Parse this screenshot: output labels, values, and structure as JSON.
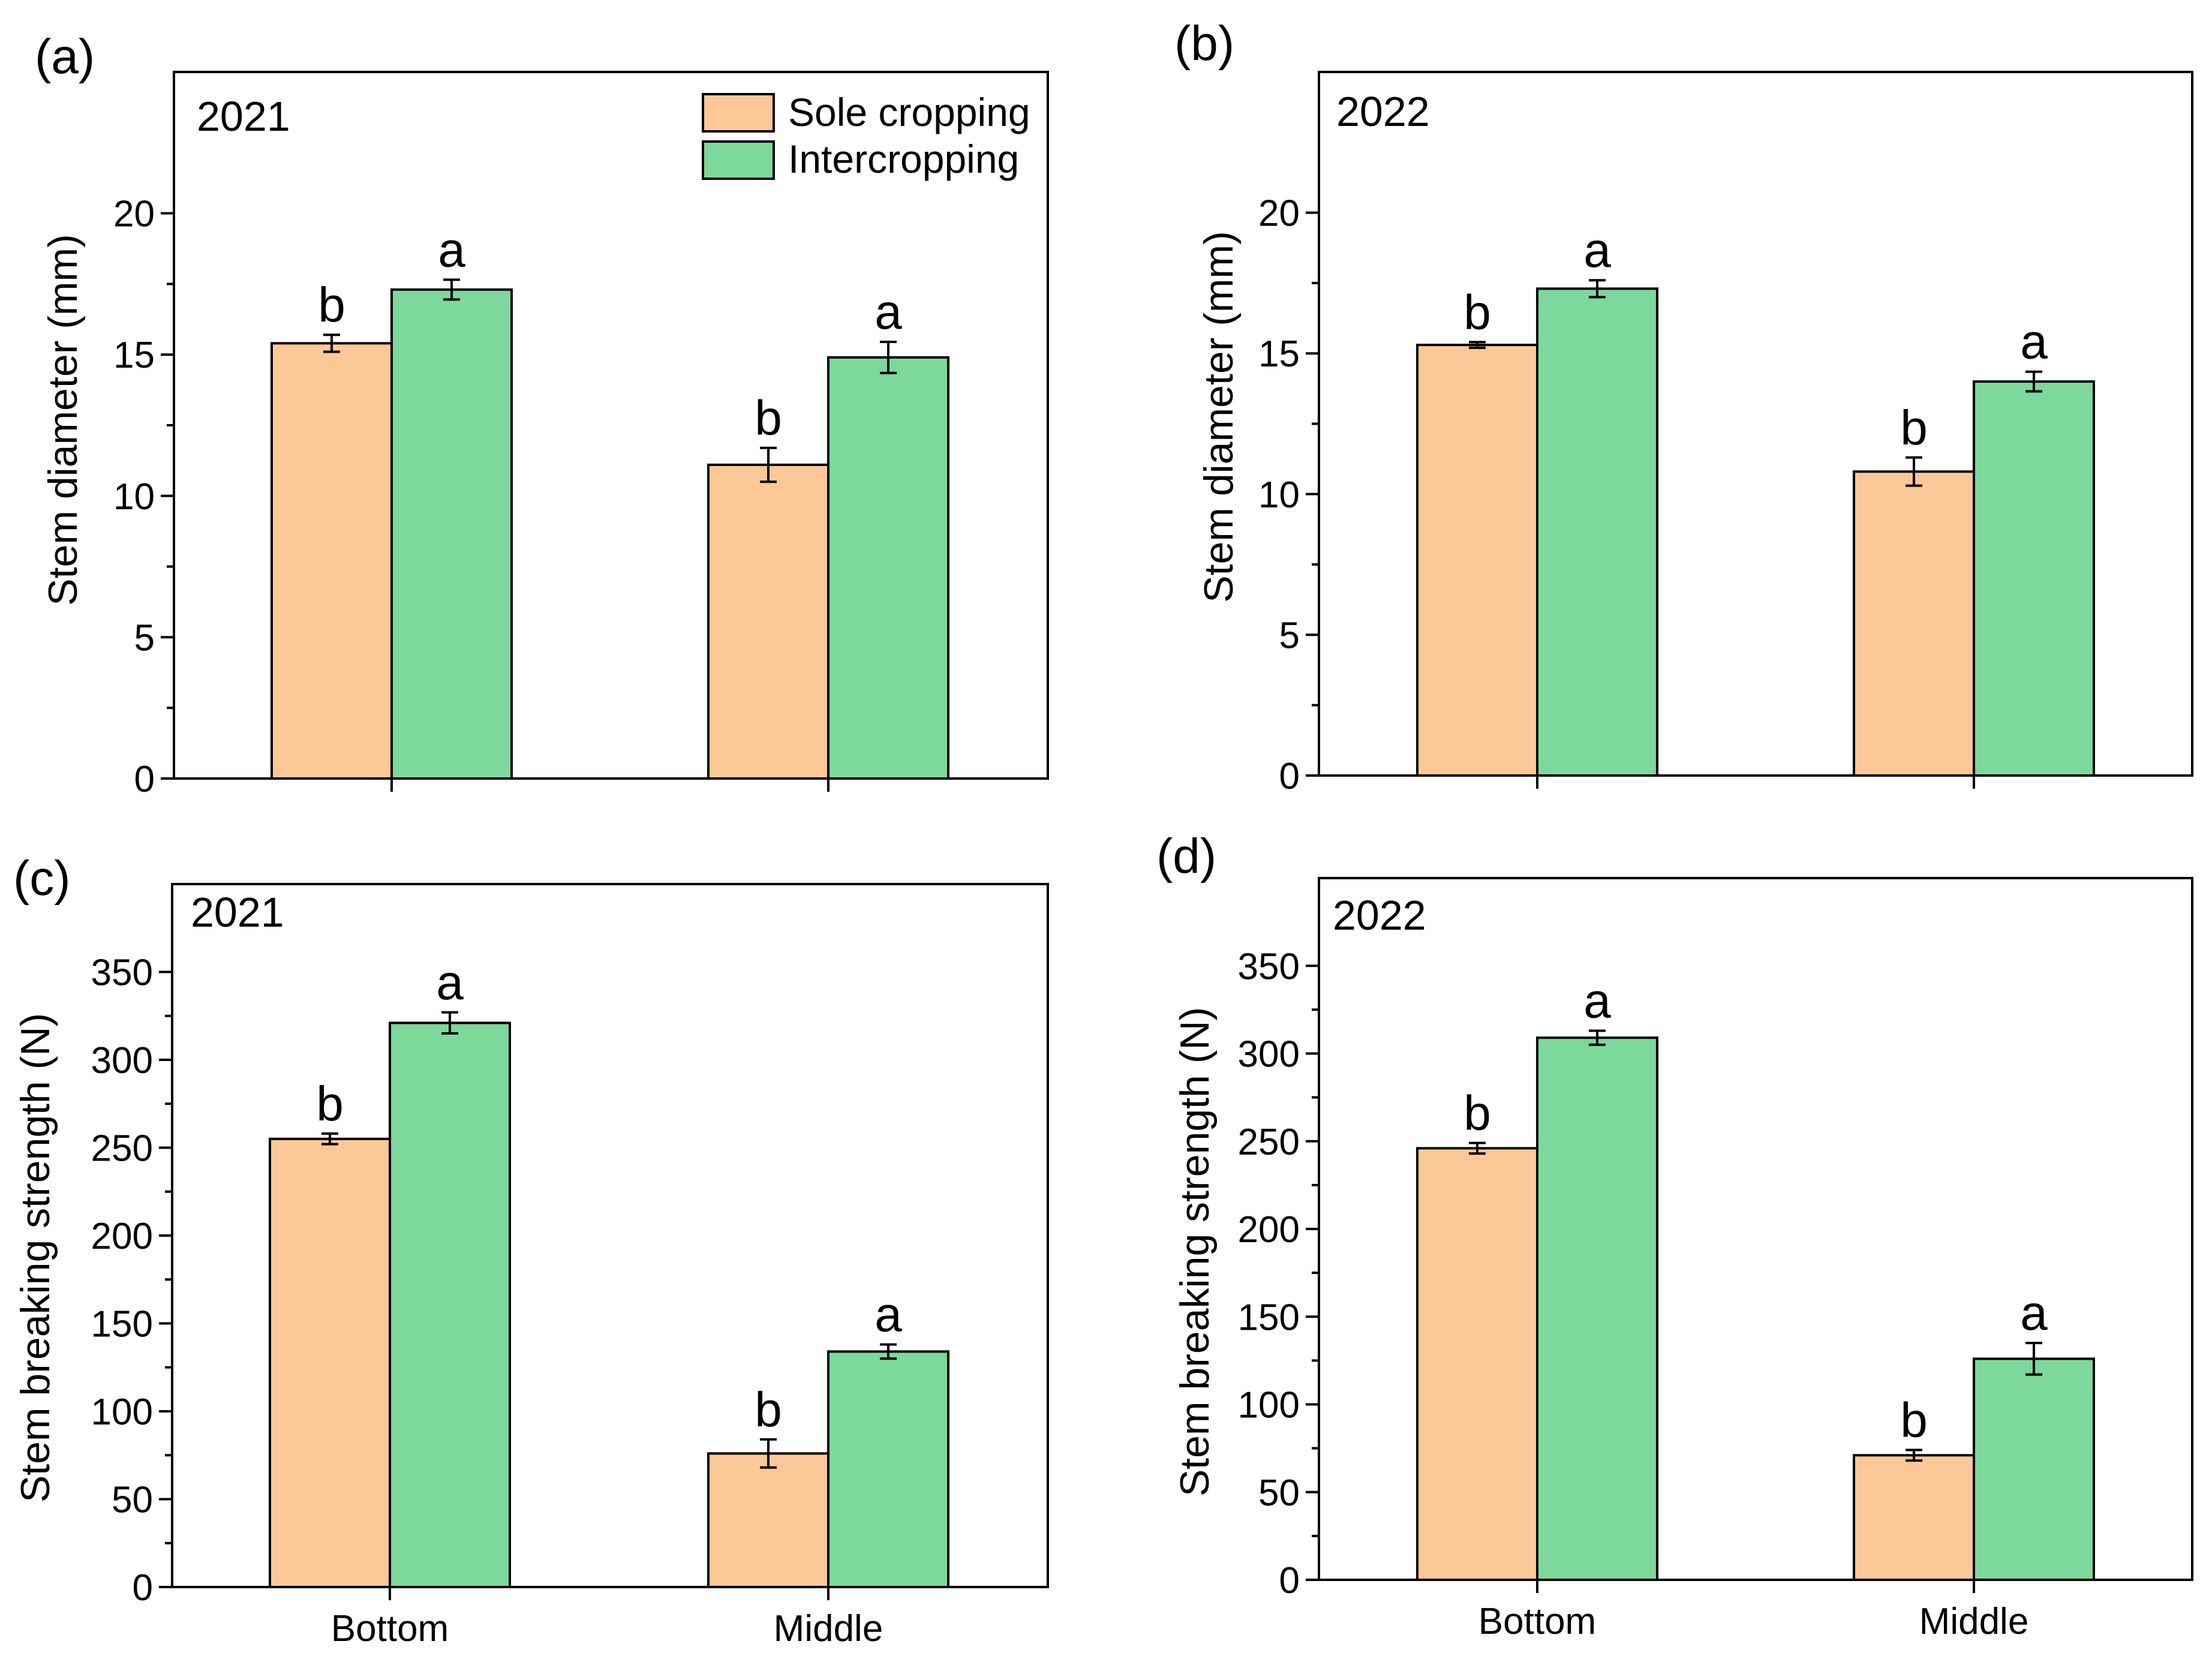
{
  "figure": {
    "legend": [
      {
        "label": "Sole cropping",
        "color": "#FDC897"
      },
      {
        "label": "Intercropping",
        "color": "#7DD89B"
      }
    ],
    "colors": {
      "sole": "#FDC897",
      "inter": "#7DD89B",
      "axis": "#000000"
    }
  },
  "chart_data": [
    {
      "panel": "(a)",
      "year": "2021",
      "type": "bar",
      "categories": [
        "Bottom",
        "Middle"
      ],
      "ylabel": "Stem diameter (mm)",
      "xlabel": "",
      "ylim": [
        0,
        25
      ],
      "yticks": [
        0,
        5,
        10,
        15,
        20
      ],
      "show_category_labels": false,
      "legend": "top-right",
      "series": [
        {
          "name": "Sole cropping",
          "values": [
            15.4,
            11.1
          ],
          "errors": [
            0.3,
            0.6
          ],
          "letters": [
            "b",
            "b"
          ]
        },
        {
          "name": "Intercropping",
          "values": [
            17.3,
            14.9
          ],
          "errors": [
            0.35,
            0.55
          ],
          "letters": [
            "a",
            "a"
          ]
        }
      ]
    },
    {
      "panel": "(b)",
      "year": "2022",
      "type": "bar",
      "categories": [
        "Bottom",
        "Middle"
      ],
      "ylabel": "Stem diameter (mm)",
      "xlabel": "",
      "ylim": [
        0,
        25
      ],
      "yticks": [
        0,
        5,
        10,
        15,
        20
      ],
      "show_category_labels": false,
      "legend": "none",
      "series": [
        {
          "name": "Sole cropping",
          "values": [
            15.3,
            10.8
          ],
          "errors": [
            0.1,
            0.5
          ],
          "letters": [
            "b",
            "b"
          ]
        },
        {
          "name": "Intercropping",
          "values": [
            17.3,
            14.0
          ],
          "errors": [
            0.3,
            0.35
          ],
          "letters": [
            "a",
            "a"
          ]
        }
      ]
    },
    {
      "panel": "(c)",
      "year": "2021",
      "type": "bar",
      "categories": [
        "Bottom",
        "Middle"
      ],
      "ylabel": "Stem breaking strength (N)",
      "xlabel": "",
      "ylim": [
        0,
        400
      ],
      "yticks": [
        0,
        50,
        100,
        150,
        200,
        250,
        300,
        350
      ],
      "show_category_labels": true,
      "legend": "none",
      "series": [
        {
          "name": "Sole cropping",
          "values": [
            255,
            76
          ],
          "errors": [
            3,
            8
          ],
          "letters": [
            "b",
            "b"
          ]
        },
        {
          "name": "Intercropping",
          "values": [
            321,
            134
          ],
          "errors": [
            6,
            4
          ],
          "letters": [
            "a",
            "a"
          ]
        }
      ]
    },
    {
      "panel": "(d)",
      "year": "2022",
      "type": "bar",
      "categories": [
        "Bottom",
        "Middle"
      ],
      "ylabel": "Stem breaking strength (N)",
      "xlabel": "",
      "ylim": [
        0,
        400
      ],
      "yticks": [
        0,
        50,
        100,
        150,
        200,
        250,
        300,
        350
      ],
      "show_category_labels": true,
      "legend": "none",
      "series": [
        {
          "name": "Sole cropping",
          "values": [
            246,
            71
          ],
          "errors": [
            3,
            3
          ],
          "letters": [
            "b",
            "b"
          ]
        },
        {
          "name": "Intercropping",
          "values": [
            309,
            126
          ],
          "errors": [
            4,
            9
          ],
          "letters": [
            "a",
            "a"
          ]
        }
      ]
    }
  ]
}
